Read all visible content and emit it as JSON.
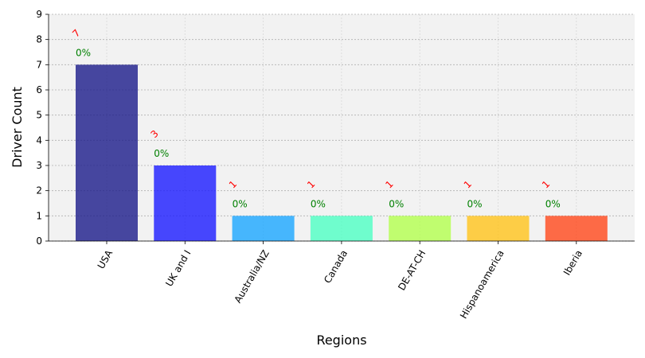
{
  "chart_data": {
    "type": "bar",
    "title": "",
    "xlabel": "Regions",
    "ylabel": "Driver Count",
    "categories": [
      "USA",
      "UK and I",
      "Australia/NZ",
      "Canada",
      "DE-AT-CH",
      "Hispanoamerica",
      "Iberia"
    ],
    "values": [
      7,
      3,
      1,
      1,
      1,
      1,
      1
    ],
    "value_labels": [
      "7",
      "3",
      "1",
      "1",
      "1",
      "1",
      "1"
    ],
    "percent_labels": [
      "0%",
      "0%",
      "0%",
      "0%",
      "0%",
      "0%",
      "0%"
    ],
    "bar_colors": [
      "#1a1a8a",
      "#1a1aff",
      "#1aa6ff",
      "#4dffc3",
      "#b3ff4d",
      "#ffc31a",
      "#ff471a"
    ],
    "bar_opacity": 0.8,
    "ylim": [
      0,
      9
    ],
    "yticks": [
      0,
      1,
      2,
      3,
      4,
      5,
      6,
      7,
      8,
      9
    ],
    "grid": true,
    "legend": "none",
    "value_label_color": "#ff0000",
    "percent_label_color": "#008000",
    "plot_background": "#f2f2f2"
  }
}
